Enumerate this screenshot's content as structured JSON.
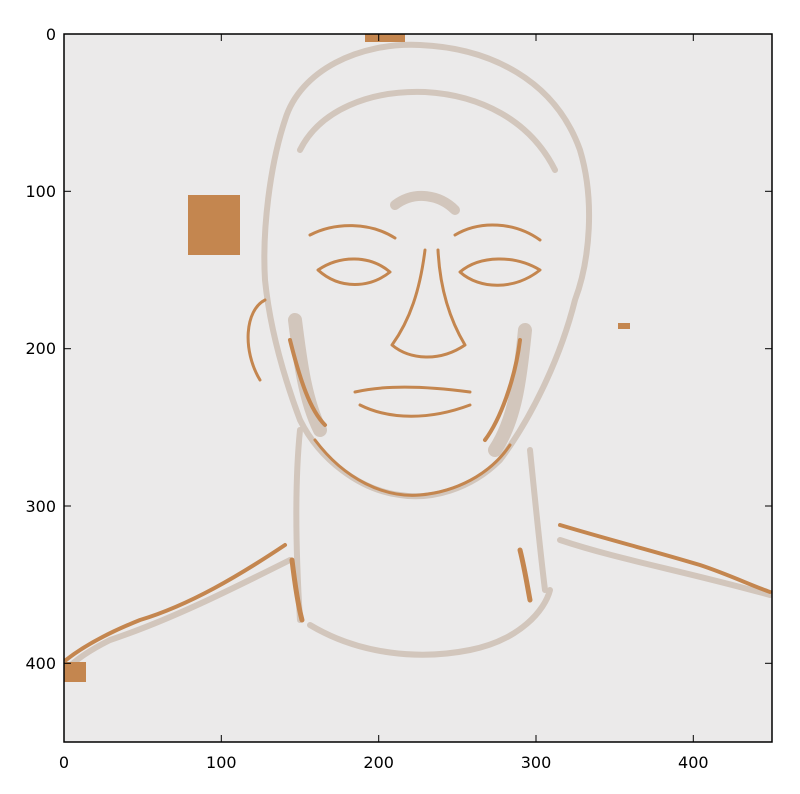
{
  "figure": {
    "image_description_colors": {
      "background": "#ebeaea",
      "light_edge": "#d2c6bc",
      "strong_edge": "#c4864f"
    },
    "x_axis": {
      "ticks": [
        "0",
        "100",
        "200",
        "300",
        "400"
      ],
      "range": [
        0,
        450
      ]
    },
    "y_axis": {
      "ticks": [
        "0",
        "100",
        "200",
        "300",
        "400"
      ],
      "range": [
        0,
        450
      ],
      "inverted": true
    }
  }
}
